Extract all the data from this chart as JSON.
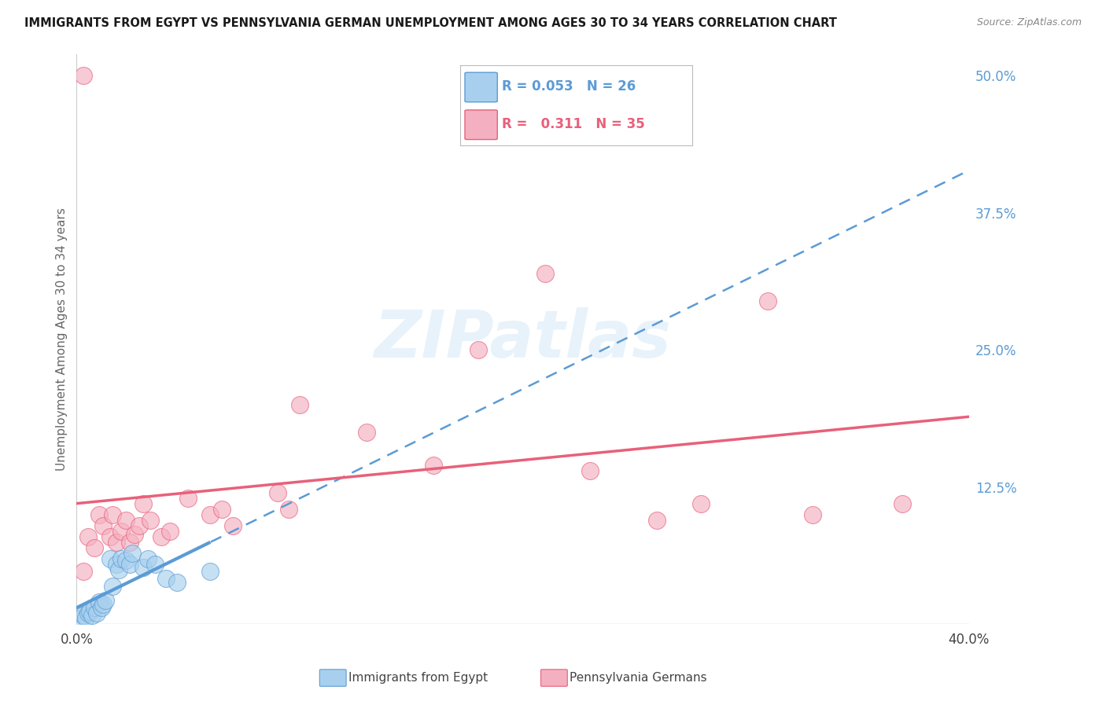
{
  "title": "IMMIGRANTS FROM EGYPT VS PENNSYLVANIA GERMAN UNEMPLOYMENT AMONG AGES 30 TO 34 YEARS CORRELATION CHART",
  "source": "Source: ZipAtlas.com",
  "ylabel": "Unemployment Among Ages 30 to 34 years",
  "xlim": [
    0.0,
    0.4
  ],
  "ylim": [
    0.0,
    0.52
  ],
  "yticks": [
    0.0,
    0.125,
    0.25,
    0.375,
    0.5
  ],
  "ytick_labels": [
    "",
    "12.5%",
    "25.0%",
    "37.5%",
    "50.0%"
  ],
  "xticks": [
    0.0,
    0.1,
    0.2,
    0.3,
    0.4
  ],
  "xtick_labels": [
    "0.0%",
    "",
    "",
    "",
    "40.0%"
  ],
  "legend1_r": "0.053",
  "legend1_n": "26",
  "legend2_r": "0.311",
  "legend2_n": "35",
  "color_blue": "#a8d0ee",
  "color_pink": "#f4b0c0",
  "color_blue_line": "#5b9bd5",
  "color_pink_line": "#e8607a",
  "watermark": "ZIPatlas",
  "blue_x": [
    0.002,
    0.003,
    0.004,
    0.005,
    0.006,
    0.007,
    0.008,
    0.009,
    0.01,
    0.011,
    0.012,
    0.013,
    0.015,
    0.016,
    0.018,
    0.019,
    0.02,
    0.022,
    0.024,
    0.025,
    0.03,
    0.032,
    0.035,
    0.04,
    0.045,
    0.06
  ],
  "blue_y": [
    0.005,
    0.008,
    0.006,
    0.01,
    0.012,
    0.008,
    0.015,
    0.01,
    0.02,
    0.015,
    0.018,
    0.022,
    0.06,
    0.035,
    0.055,
    0.05,
    0.06,
    0.058,
    0.055,
    0.065,
    0.052,
    0.06,
    0.055,
    0.042,
    0.038,
    0.048
  ],
  "pink_x": [
    0.003,
    0.005,
    0.008,
    0.01,
    0.012,
    0.015,
    0.016,
    0.018,
    0.02,
    0.022,
    0.024,
    0.026,
    0.028,
    0.03,
    0.033,
    0.038,
    0.042,
    0.05,
    0.06,
    0.065,
    0.07,
    0.09,
    0.095,
    0.1,
    0.13,
    0.16,
    0.18,
    0.21,
    0.23,
    0.26,
    0.28,
    0.31,
    0.33,
    0.37,
    0.003
  ],
  "pink_y": [
    0.5,
    0.08,
    0.07,
    0.1,
    0.09,
    0.08,
    0.1,
    0.075,
    0.085,
    0.095,
    0.075,
    0.082,
    0.09,
    0.11,
    0.095,
    0.08,
    0.085,
    0.115,
    0.1,
    0.105,
    0.09,
    0.12,
    0.105,
    0.2,
    0.175,
    0.145,
    0.25,
    0.32,
    0.14,
    0.095,
    0.11,
    0.295,
    0.1,
    0.11,
    0.048
  ]
}
